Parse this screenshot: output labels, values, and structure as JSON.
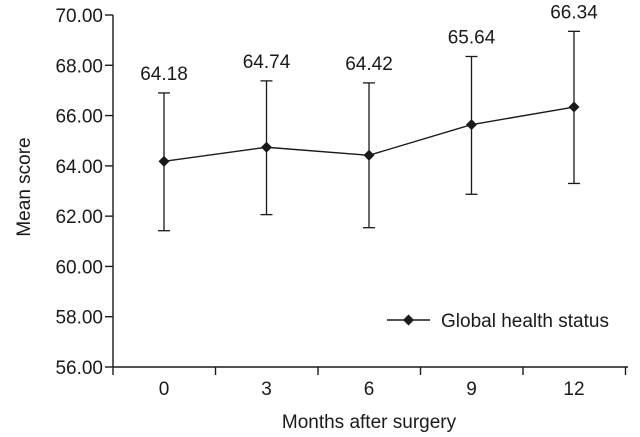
{
  "chart_data": {
    "type": "line",
    "xlabel": "Months after surgery",
    "ylabel": "Mean score",
    "categories": [
      "0",
      "3",
      "6",
      "9",
      "12"
    ],
    "ylim": [
      56.0,
      70.0
    ],
    "y_ticks": [
      "56.00",
      "58.00",
      "60.00",
      "62.00",
      "64.00",
      "66.00",
      "68.00",
      "70.00"
    ],
    "y_tick_values": [
      56,
      58,
      60,
      62,
      64,
      66,
      68,
      70
    ],
    "series": [
      {
        "name": "Global health status",
        "values": [
          64.18,
          64.74,
          64.42,
          65.64,
          66.34
        ],
        "value_labels": [
          "64.18",
          "64.74",
          "64.42",
          "65.64",
          "66.34"
        ],
        "error_upper": [
          66.9,
          67.38,
          67.3,
          68.35,
          69.35
        ],
        "error_lower": [
          61.42,
          62.06,
          61.54,
          62.87,
          63.3
        ],
        "marker": "diamond",
        "color": "#1a1a1a"
      }
    ],
    "legend_position": "bottom-right",
    "grid": false
  }
}
